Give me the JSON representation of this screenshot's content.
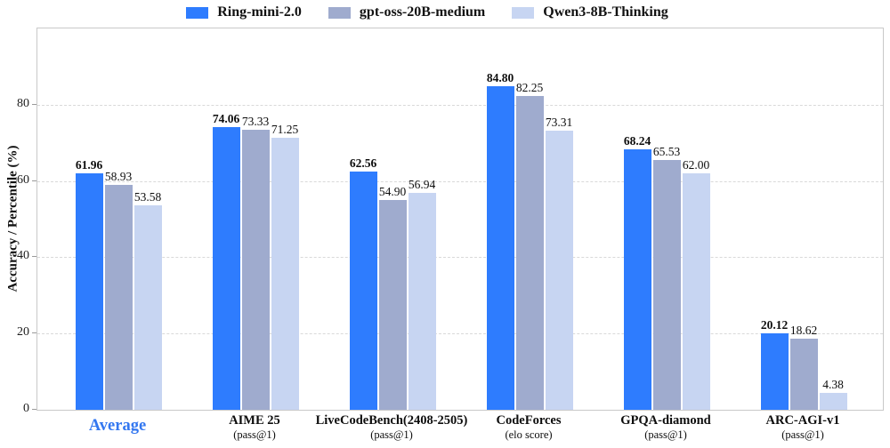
{
  "chart_data": {
    "type": "bar",
    "title": "",
    "ylabel": "Accuracy / Percentile (%)",
    "xlabel": "",
    "ylim": [
      0,
      100
    ],
    "yticks": [
      0,
      20,
      40,
      60,
      80
    ],
    "grid": "horizontal dashed",
    "legend_position": "top center",
    "categories": [
      {
        "label": "Average",
        "sublabel": "",
        "highlighted": true
      },
      {
        "label": "AIME 25",
        "sublabel": "(pass@1)",
        "highlighted": false
      },
      {
        "label": "LiveCodeBench(2408-2505)",
        "sublabel": "(pass@1)",
        "highlighted": false
      },
      {
        "label": "CodeForces",
        "sublabel": "(elo score)",
        "highlighted": false
      },
      {
        "label": "GPQA-diamond",
        "sublabel": "(pass@1)",
        "highlighted": false
      },
      {
        "label": "ARC-AGI-v1",
        "sublabel": "(pass@1)",
        "highlighted": false
      }
    ],
    "series": [
      {
        "name": "Ring-mini-2.0",
        "color": "#2e7cfe",
        "bold_value_labels": true,
        "values": [
          61.96,
          74.06,
          62.56,
          84.8,
          68.24,
          20.12
        ]
      },
      {
        "name": "gpt-oss-20B-medium",
        "color": "#9fabce",
        "bold_value_labels": false,
        "values": [
          58.93,
          73.33,
          54.9,
          82.25,
          65.53,
          18.62
        ]
      },
      {
        "name": "Qwen3-8B-Thinking",
        "color": "#c7d5f2",
        "bold_value_labels": false,
        "values": [
          53.58,
          71.25,
          56.94,
          73.31,
          62.0,
          4.38
        ]
      }
    ],
    "value_label_decimals": 2
  },
  "colors": {
    "series_blue": "#2e7cfe",
    "series_gray_blue": "#9fabce",
    "series_light_blue": "#c7d5f2",
    "average_label": "#3377f0",
    "gridline": "#d9d9d9",
    "plot_border": "#c9c9c9",
    "text": "#111111"
  }
}
